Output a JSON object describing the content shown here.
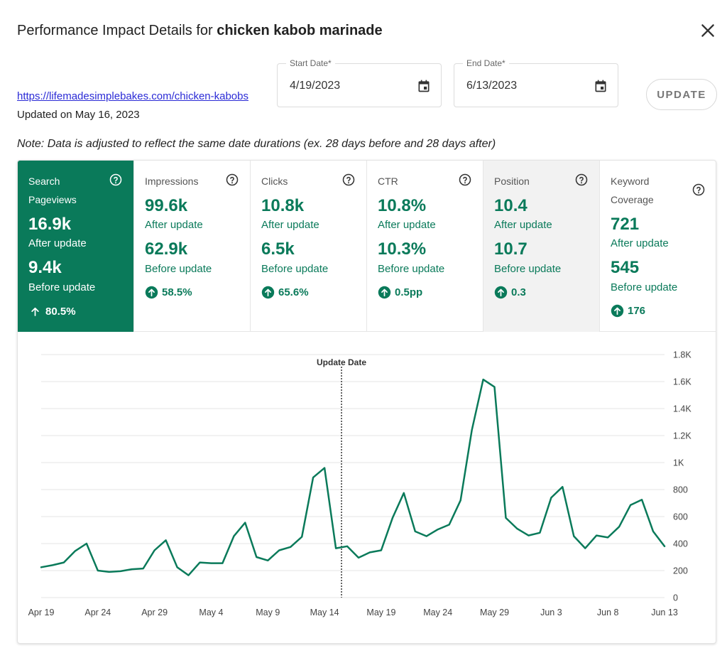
{
  "header": {
    "title_prefix": "Performance Impact Details for ",
    "title_keyword": "chicken kabob marinade",
    "url": "https://lifemadesimplebakes.com/chicken-kabobs",
    "updated": "Updated on May 16, 2023"
  },
  "dates": {
    "start_label": "Start Date*",
    "start_value": "4/19/2023",
    "end_label": "End Date*",
    "end_value": "6/13/2023",
    "update_label": "UPDATE"
  },
  "note": "Note: Data is adjusted to reflect the same date durations (ex. 28 days before and 28 days after)",
  "metrics": [
    {
      "title": "Search Pageviews",
      "after": "16.9k",
      "after_label": "After update",
      "before": "9.4k",
      "before_label": "Before update",
      "delta": "80.5%"
    },
    {
      "title": "Impressions",
      "after": "99.6k",
      "after_label": "After update",
      "before": "62.9k",
      "before_label": "Before update",
      "delta": "58.5%"
    },
    {
      "title": "Clicks",
      "after": "10.8k",
      "after_label": "After update",
      "before": "6.5k",
      "before_label": "Before update",
      "delta": "65.6%"
    },
    {
      "title": "CTR",
      "after": "10.8%",
      "after_label": "After update",
      "before": "10.3%",
      "before_label": "Before update",
      "delta": "0.5pp"
    },
    {
      "title": "Position",
      "after": "10.4",
      "after_label": "After update",
      "before": "10.7",
      "before_label": "Before update",
      "delta": "0.3"
    },
    {
      "title": "Keyword Coverage",
      "after": "721",
      "after_label": "After update",
      "before": "545",
      "before_label": "Before update",
      "delta": "176"
    }
  ],
  "icons": {
    "close": "close-icon",
    "calendar": "calendar-icon",
    "help": "help-circle-icon",
    "delta": "arrow-up-circle-icon"
  },
  "colors": {
    "accent": "#0a7a5a",
    "link": "#2b2bd6",
    "shaded": "#f2f2f2"
  },
  "chart_data": {
    "type": "line",
    "title": "",
    "annotation": "Update Date",
    "annotation_index": 27,
    "x_ticks": [
      "Apr 19",
      "Apr 24",
      "Apr 29",
      "May 4",
      "May 9",
      "May 14",
      "May 19",
      "May 24",
      "May 29",
      "Jun 3",
      "Jun 8",
      "Jun 13"
    ],
    "x_tick_indices": [
      0,
      5,
      10,
      15,
      20,
      25,
      30,
      35,
      40,
      45,
      50,
      55
    ],
    "y_ticks": [
      "0",
      "200",
      "400",
      "600",
      "800",
      "1K",
      "1.2K",
      "1.4K",
      "1.6K",
      "1.8K"
    ],
    "ylim": [
      0,
      1800
    ],
    "grid": true,
    "y_axis_side": "right",
    "series": [
      {
        "values": [
          225,
          240,
          260,
          345,
          400,
          200,
          190,
          195,
          210,
          215,
          350,
          425,
          225,
          165,
          260,
          255,
          255,
          455,
          555,
          300,
          275,
          350,
          375,
          450,
          890,
          960,
          365,
          380,
          295,
          335,
          350,
          590,
          775,
          490,
          455,
          505,
          540,
          720,
          1240,
          1615,
          1560,
          590,
          510,
          460,
          480,
          740,
          820,
          455,
          365,
          460,
          445,
          525,
          685,
          725,
          490,
          380
        ]
      }
    ]
  }
}
